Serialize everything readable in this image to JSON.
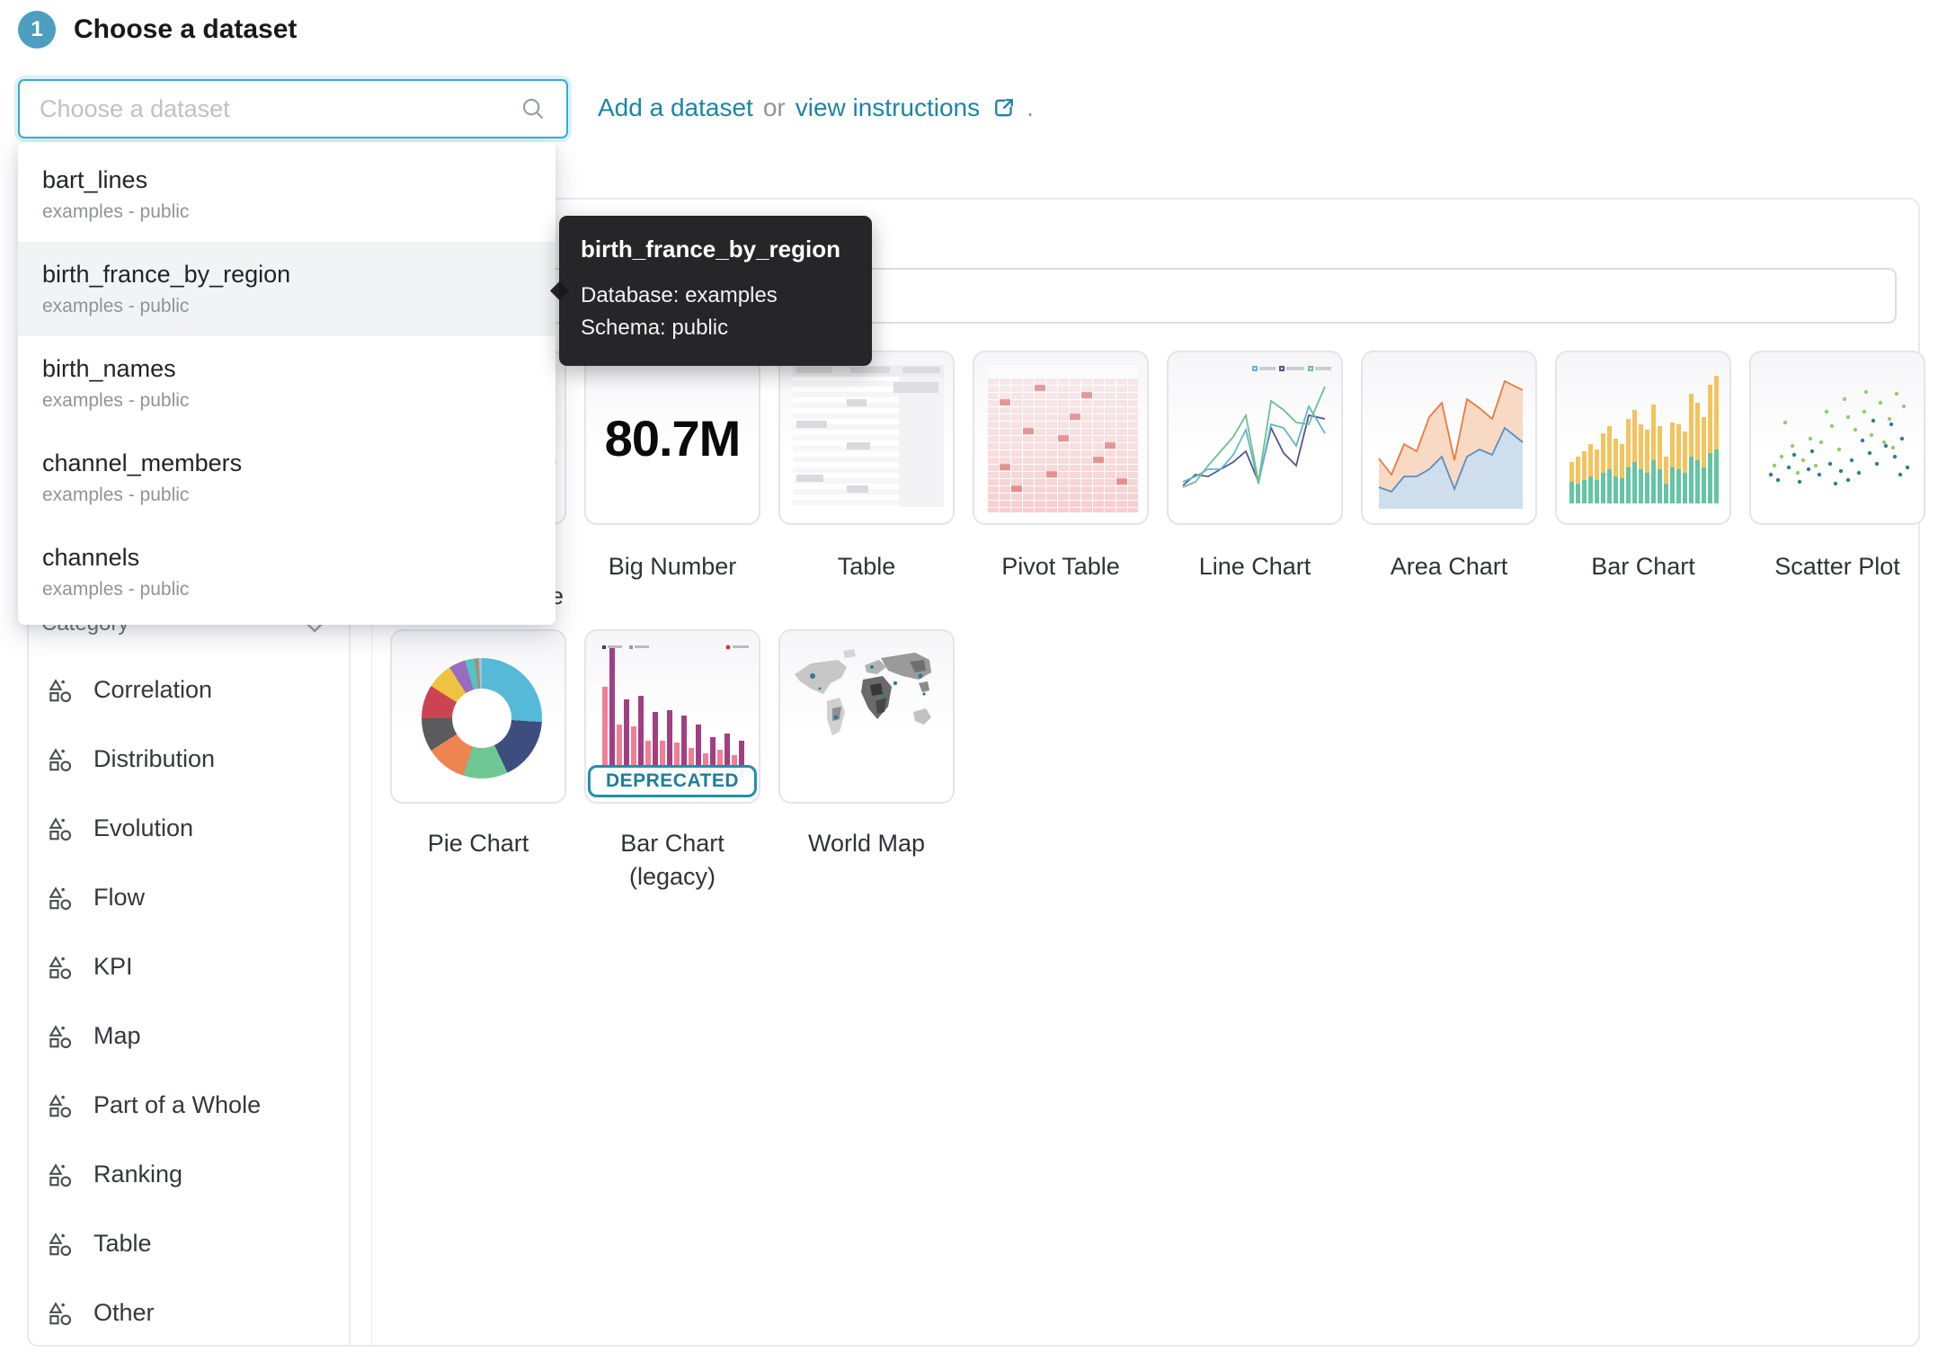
{
  "header": {
    "step_number": "1",
    "title": "Choose a dataset"
  },
  "dataset_picker": {
    "placeholder": "Choose a dataset",
    "options": [
      {
        "name": "bart_lines",
        "detail": "examples - public"
      },
      {
        "name": "birth_france_by_region",
        "detail": "examples - public"
      },
      {
        "name": "birth_names",
        "detail": "examples - public"
      },
      {
        "name": "channel_members",
        "detail": "examples - public"
      },
      {
        "name": "channels",
        "detail": "examples - public"
      }
    ],
    "highlighted_option": "birth_france_by_region"
  },
  "actions": {
    "add_dataset_link": "Add a dataset",
    "separator": "or",
    "view_instructions_link": "view instructions",
    "period": "."
  },
  "tooltip": {
    "title": "birth_france_by_region",
    "database_line": "Database: examples",
    "schema_line": "Schema: public"
  },
  "sidebar": {
    "header": "Category",
    "items": [
      "Correlation",
      "Distribution",
      "Evolution",
      "Flow",
      "KPI",
      "Map",
      "Part of a Whole",
      "Ranking",
      "Table",
      "Other"
    ]
  },
  "gallery": {
    "search_placeholder": "",
    "hidden_card": {
      "label_fragment": "e"
    },
    "row1": [
      {
        "label": "Big Number",
        "value": "80.7M"
      },
      {
        "label": "Table"
      },
      {
        "label": "Pivot Table"
      },
      {
        "label": "Line Chart"
      },
      {
        "label": "Area Chart"
      },
      {
        "label": "Bar Chart"
      },
      {
        "label": "Scatter Plot"
      }
    ],
    "row2": [
      {
        "label": "Pie Chart"
      },
      {
        "label": "Bar Chart (legacy)",
        "badge": "DEPRECATED"
      },
      {
        "label": "World Map"
      }
    ]
  },
  "colors": {
    "primary": "#20a7c9",
    "link": "#1b85a5",
    "step_badge": "#4c9fc0",
    "deprecated": "#1d8099"
  }
}
